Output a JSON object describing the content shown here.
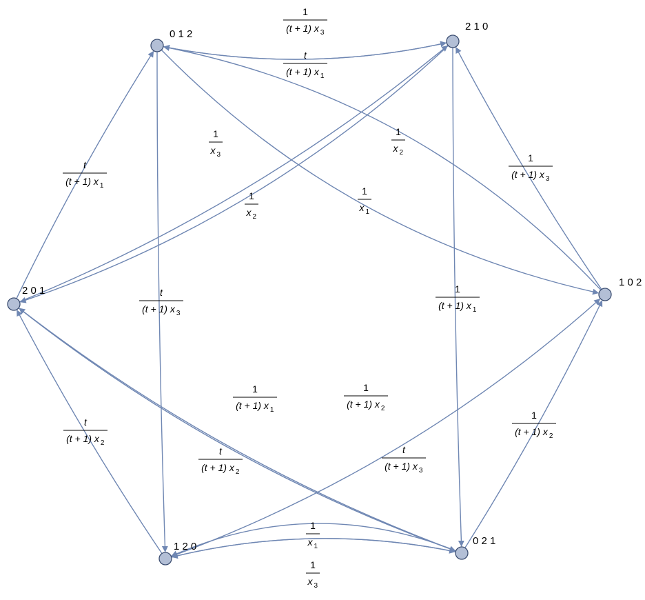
{
  "colors": {
    "edge": "#6f87b3",
    "node_fill": "#b3bfd6",
    "node_stroke": "#3d4f72"
  },
  "nodes": [
    {
      "id": "n012",
      "label": "0 1 2"
    },
    {
      "id": "n210",
      "label": "2 1 0"
    },
    {
      "id": "n201",
      "label": "2 0 1"
    },
    {
      "id": "n102",
      "label": "1 0 2"
    },
    {
      "id": "n120",
      "label": "1 2 0"
    },
    {
      "id": "n021",
      "label": "0 2 1"
    }
  ],
  "edges": [
    {
      "from": "n012",
      "to": "n210",
      "label": {
        "num": "1",
        "den": "(t + 1) x",
        "sub": "3"
      }
    },
    {
      "from": "n210",
      "to": "n012",
      "label": {
        "num": "t",
        "den": "(t + 1) x",
        "sub": "1"
      }
    },
    {
      "from": "n201",
      "to": "n012",
      "label": {
        "num": "t",
        "den": "(t + 1) x",
        "sub": "1"
      }
    },
    {
      "from": "n201",
      "to": "n210",
      "label": {
        "num": "1",
        "den": "x",
        "sub": "3"
      }
    },
    {
      "from": "n102",
      "to": "n012",
      "label": {
        "num": "1",
        "den": "x",
        "sub": "2"
      }
    },
    {
      "from": "n102",
      "to": "n210",
      "label": {
        "num": "1",
        "den": "(t + 1) x",
        "sub": "3"
      }
    },
    {
      "from": "n012",
      "to": "n102",
      "label": {
        "num": "1",
        "den": "x",
        "sub": "1"
      }
    },
    {
      "from": "n210",
      "to": "n201",
      "label": {
        "num": "1",
        "den": "x",
        "sub": "2"
      }
    },
    {
      "from": "n012",
      "to": "n120",
      "label": {
        "num": "t",
        "den": "(t + 1) x",
        "sub": "3"
      }
    },
    {
      "from": "n210",
      "to": "n021",
      "label": {
        "num": "1",
        "den": "(t + 1) x",
        "sub": "1"
      }
    },
    {
      "from": "n201",
      "to": "n021",
      "label": {
        "num": "1",
        "den": "(t + 1) x",
        "sub": "1"
      }
    },
    {
      "from": "n120",
      "to": "n102",
      "label": {
        "num": "1",
        "den": "(t + 1) x",
        "sub": "2"
      }
    },
    {
      "from": "n120",
      "to": "n201",
      "label": {
        "num": "t",
        "den": "(t + 1) x",
        "sub": "2"
      }
    },
    {
      "from": "n021",
      "to": "n201",
      "label": {
        "num": "t",
        "den": "(t + 1) x",
        "sub": "2"
      }
    },
    {
      "from": "n021",
      "to": "n102",
      "label": {
        "num": "1",
        "den": "(t + 1) x",
        "sub": "2"
      }
    },
    {
      "from": "n021",
      "to": "n120",
      "label": {
        "num": "t",
        "den": "(t + 1) x",
        "sub": "3"
      }
    },
    {
      "from": "n120",
      "to": "n021",
      "label": {
        "num": "1",
        "den": "x",
        "sub": "1"
      }
    },
    {
      "from": "n021",
      "to": "n120",
      "label": {
        "num": "1",
        "den": "x",
        "sub": "3"
      }
    }
  ]
}
